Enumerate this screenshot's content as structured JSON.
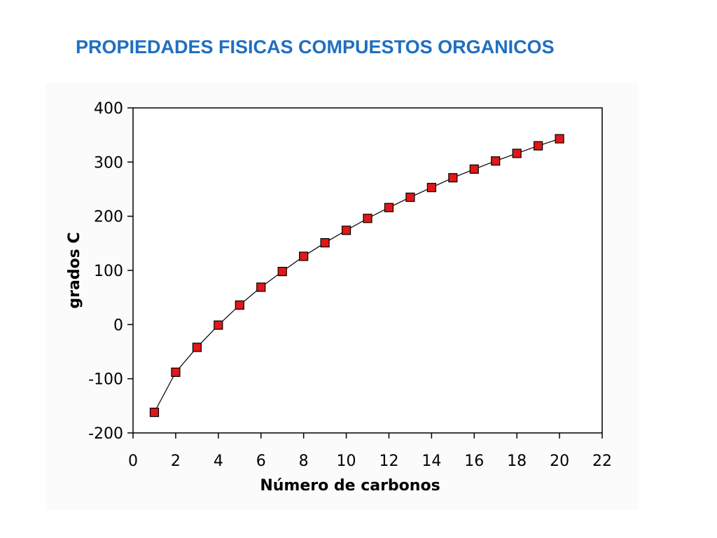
{
  "slide": {
    "title": "PROPIEDADES FISICAS COMPUESTOS ORGANICOS"
  },
  "chart_data": {
    "type": "line",
    "title": "",
    "xlabel": "Número de carbonos",
    "ylabel": "grados C",
    "xlim": [
      0,
      22
    ],
    "ylim": [
      -200,
      400
    ],
    "x_ticks": [
      0,
      2,
      4,
      6,
      8,
      10,
      12,
      14,
      16,
      18,
      20,
      22
    ],
    "y_ticks": [
      -200,
      -100,
      0,
      100,
      200,
      300,
      400
    ],
    "grid": false,
    "legend": "none",
    "series": [
      {
        "marker": "square",
        "marker_color": "#e01818",
        "line_color": "#000000",
        "x": [
          1,
          2,
          3,
          4,
          5,
          6,
          7,
          8,
          9,
          10,
          11,
          12,
          13,
          14,
          15,
          16,
          17,
          18,
          19,
          20
        ],
        "y": [
          -162,
          -88,
          -42,
          -1,
          36,
          69,
          98,
          126,
          151,
          174,
          196,
          216,
          235,
          253,
          271,
          287,
          302,
          316,
          330,
          343
        ]
      }
    ]
  }
}
